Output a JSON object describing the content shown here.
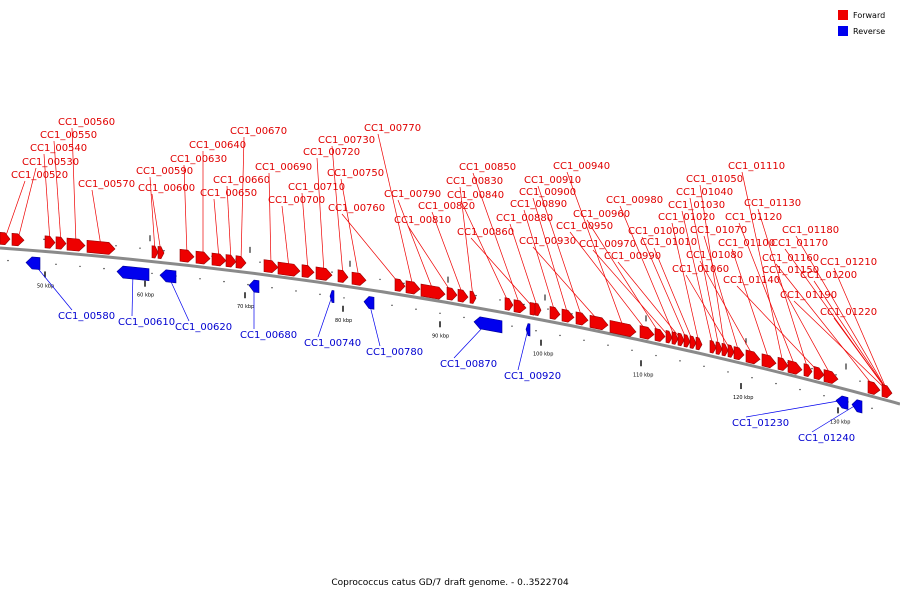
{
  "legend": {
    "forward_label": "Forward",
    "reverse_label": "Reverse",
    "forward_color": "#ee0000",
    "reverse_color": "#0000ee"
  },
  "caption": "Coprococcus catus GD/7 draft genome. - 0..3522704",
  "ticks": [
    "50 kbp",
    "60 kbp",
    "70 kbp",
    "80 kbp",
    "90 kbp",
    "100 kbp",
    "110 kbp",
    "120 kbp",
    "130 kbp"
  ],
  "forward_genes": [
    "CC1_00520",
    "CC1_00530",
    "CC1_00540",
    "CC1_00550",
    "CC1_00560",
    "CC1_00570",
    "CC1_00590",
    "CC1_00600",
    "CC1_00630",
    "CC1_00640",
    "CC1_00650",
    "CC1_00660",
    "CC1_00670",
    "CC1_00690",
    "CC1_00700",
    "CC1_00710",
    "CC1_00720",
    "CC1_00730",
    "CC1_00750",
    "CC1_00760",
    "CC1_00770",
    "CC1_00790",
    "CC1_00810",
    "CC1_00820",
    "CC1_00830",
    "CC1_00840",
    "CC1_00850",
    "CC1_00860",
    "CC1_00880",
    "CC1_00890",
    "CC1_00900",
    "CC1_00910",
    "CC1_00930",
    "CC1_00940",
    "CC1_00950",
    "CC1_00960",
    "CC1_00970",
    "CC1_00980",
    "CC1_00990",
    "CC1_01000",
    "CC1_01010",
    "CC1_01020",
    "CC1_01030",
    "CC1_01040",
    "CC1_01050",
    "CC1_01060",
    "CC1_01070",
    "CC1_01080",
    "CC1_01100",
    "CC1_01110",
    "CC1_01120",
    "CC1_01130",
    "CC1_01140",
    "CC1_01150",
    "CC1_01160",
    "CC1_01170",
    "CC1_01180",
    "CC1_01190",
    "CC1_01200",
    "CC1_01210",
    "CC1_01220"
  ],
  "reverse_genes": [
    "CC1_00580",
    "CC1_00610",
    "CC1_00620",
    "CC1_00680",
    "CC1_00740",
    "CC1_00780",
    "CC1_00870",
    "CC1_00920",
    "CC1_01230",
    "CC1_01240"
  ]
}
